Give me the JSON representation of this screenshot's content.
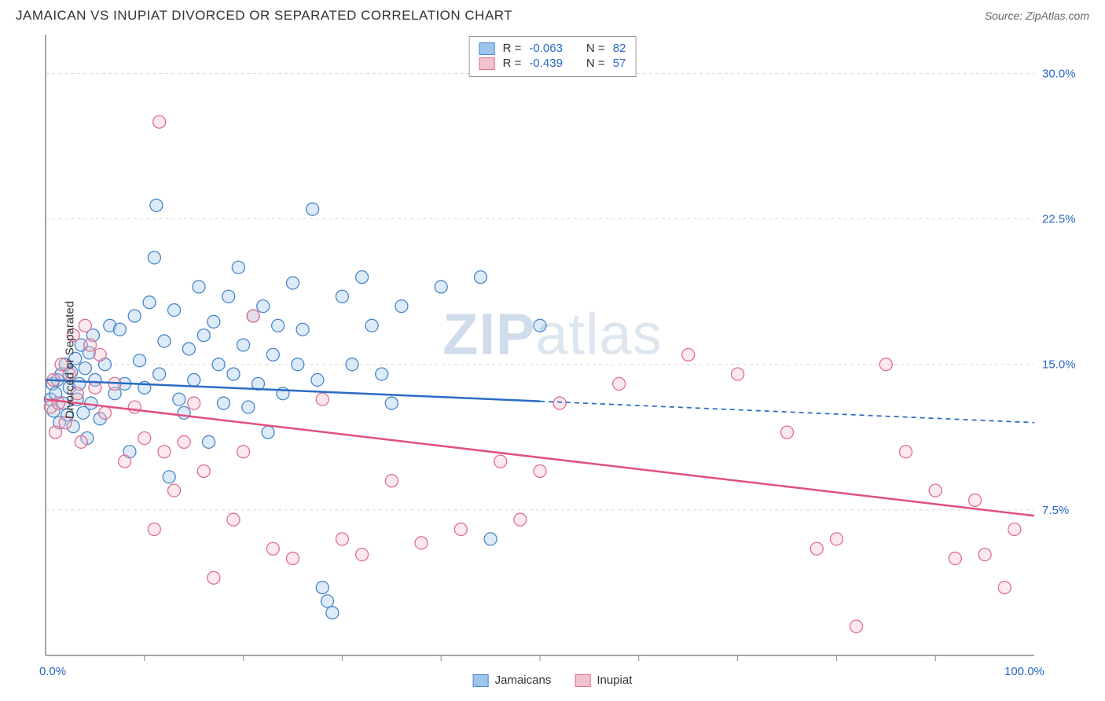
{
  "title": "JAMAICAN VS INUPIAT DIVORCED OR SEPARATED CORRELATION CHART",
  "source_label": "Source:",
  "source_name": "ZipAtlas.com",
  "watermark_bold": "ZIP",
  "watermark_rest": "atlas",
  "y_axis_label": "Divorced or Separated",
  "chart": {
    "type": "scatter",
    "background_color": "#ffffff",
    "plot_border_color": "#888888",
    "grid_color": "#d8d8d8",
    "xlim": [
      0,
      100
    ],
    "ylim": [
      0,
      32
    ],
    "xtick_major": [
      0,
      50,
      100
    ],
    "xtick_labels": [
      "0.0%",
      "",
      "100.0%"
    ],
    "xtick_minor_step": 10,
    "ytick_positions": [
      7.5,
      15.0,
      22.5,
      30.0
    ],
    "ytick_labels": [
      "7.5%",
      "15.0%",
      "22.5%",
      "30.0%"
    ],
    "axis_label_color": "#2968c8",
    "axis_label_fontsize": 15,
    "marker_radius": 8,
    "marker_fill_opacity": 0.35,
    "marker_stroke_width": 1.3,
    "series": [
      {
        "name": "Jamaicans",
        "color_fill": "#9ec5ec",
        "color_stroke": "#4a85c9",
        "R": "-0.063",
        "N": "82",
        "trend": {
          "color": "#2b6cc4",
          "width": 2.5,
          "solid_xmax": 50,
          "dash": "6,5",
          "y_start": 14.2,
          "y_end": 12.0
        },
        "points": [
          [
            0.5,
            13.2
          ],
          [
            0.7,
            14.0
          ],
          [
            0.8,
            12.6
          ],
          [
            1.0,
            13.5
          ],
          [
            1.2,
            14.2
          ],
          [
            1.4,
            12.0
          ],
          [
            1.6,
            14.5
          ],
          [
            1.8,
            13.0
          ],
          [
            2.0,
            15.0
          ],
          [
            2.2,
            12.4
          ],
          [
            2.4,
            13.8
          ],
          [
            2.6,
            14.6
          ],
          [
            2.8,
            11.8
          ],
          [
            3.0,
            15.3
          ],
          [
            3.2,
            13.2
          ],
          [
            3.4,
            14.0
          ],
          [
            3.6,
            16.0
          ],
          [
            3.8,
            12.5
          ],
          [
            4.0,
            14.8
          ],
          [
            4.2,
            11.2
          ],
          [
            4.4,
            15.6
          ],
          [
            4.6,
            13.0
          ],
          [
            4.8,
            16.5
          ],
          [
            5.0,
            14.2
          ],
          [
            5.5,
            12.2
          ],
          [
            6.0,
            15.0
          ],
          [
            6.5,
            17.0
          ],
          [
            7.0,
            13.5
          ],
          [
            7.5,
            16.8
          ],
          [
            8.0,
            14.0
          ],
          [
            8.5,
            10.5
          ],
          [
            9.0,
            17.5
          ],
          [
            9.5,
            15.2
          ],
          [
            10.0,
            13.8
          ],
          [
            10.5,
            18.2
          ],
          [
            11.0,
            20.5
          ],
          [
            11.2,
            23.2
          ],
          [
            11.5,
            14.5
          ],
          [
            12.0,
            16.2
          ],
          [
            12.5,
            9.2
          ],
          [
            13.0,
            17.8
          ],
          [
            13.5,
            13.2
          ],
          [
            14.0,
            12.5
          ],
          [
            14.5,
            15.8
          ],
          [
            15.0,
            14.2
          ],
          [
            15.5,
            19.0
          ],
          [
            16.0,
            16.5
          ],
          [
            16.5,
            11.0
          ],
          [
            17.0,
            17.2
          ],
          [
            17.5,
            15.0
          ],
          [
            18.0,
            13.0
          ],
          [
            18.5,
            18.5
          ],
          [
            19.0,
            14.5
          ],
          [
            19.5,
            20.0
          ],
          [
            20.0,
            16.0
          ],
          [
            20.5,
            12.8
          ],
          [
            21.0,
            17.5
          ],
          [
            21.5,
            14.0
          ],
          [
            22.0,
            18.0
          ],
          [
            22.5,
            11.5
          ],
          [
            23.0,
            15.5
          ],
          [
            23.5,
            17.0
          ],
          [
            24.0,
            13.5
          ],
          [
            25.0,
            19.2
          ],
          [
            25.5,
            15.0
          ],
          [
            26.0,
            16.8
          ],
          [
            27.0,
            23.0
          ],
          [
            27.5,
            14.2
          ],
          [
            28.0,
            3.5
          ],
          [
            28.5,
            2.8
          ],
          [
            29.0,
            2.2
          ],
          [
            30.0,
            18.5
          ],
          [
            31.0,
            15.0
          ],
          [
            32.0,
            19.5
          ],
          [
            33.0,
            17.0
          ],
          [
            34.0,
            14.5
          ],
          [
            35.0,
            13.0
          ],
          [
            36.0,
            18.0
          ],
          [
            40.0,
            19.0
          ],
          [
            45.0,
            6.0
          ],
          [
            44.0,
            19.5
          ],
          [
            50.0,
            17.0
          ]
        ]
      },
      {
        "name": "Inupiat",
        "color_fill": "#f4c1ce",
        "color_stroke": "#e06e8e",
        "R": "-0.439",
        "N": "57",
        "trend": {
          "color": "#e05080",
          "width": 2.5,
          "solid_xmax": 100,
          "dash": "",
          "y_start": 13.2,
          "y_end": 7.2
        },
        "points": [
          [
            0.5,
            12.8
          ],
          [
            0.8,
            14.2
          ],
          [
            1.0,
            11.5
          ],
          [
            1.3,
            13.0
          ],
          [
            1.6,
            15.0
          ],
          [
            2.0,
            12.0
          ],
          [
            2.4,
            14.5
          ],
          [
            2.8,
            16.5
          ],
          [
            3.2,
            13.5
          ],
          [
            3.6,
            11.0
          ],
          [
            4.0,
            17.0
          ],
          [
            4.5,
            16.0
          ],
          [
            5.0,
            13.8
          ],
          [
            5.5,
            15.5
          ],
          [
            6.0,
            12.5
          ],
          [
            7.0,
            14.0
          ],
          [
            8.0,
            10.0
          ],
          [
            9.0,
            12.8
          ],
          [
            10.0,
            11.2
          ],
          [
            11.0,
            6.5
          ],
          [
            11.5,
            27.5
          ],
          [
            12.0,
            10.5
          ],
          [
            13.0,
            8.5
          ],
          [
            14.0,
            11.0
          ],
          [
            15.0,
            13.0
          ],
          [
            16.0,
            9.5
          ],
          [
            17.0,
            4.0
          ],
          [
            19.0,
            7.0
          ],
          [
            20.0,
            10.5
          ],
          [
            21.0,
            17.5
          ],
          [
            23.0,
            5.5
          ],
          [
            25.0,
            5.0
          ],
          [
            28.0,
            13.2
          ],
          [
            30.0,
            6.0
          ],
          [
            32.0,
            5.2
          ],
          [
            35.0,
            9.0
          ],
          [
            38.0,
            5.8
          ],
          [
            42.0,
            6.5
          ],
          [
            46.0,
            10.0
          ],
          [
            50.0,
            9.5
          ],
          [
            48.0,
            7.0
          ],
          [
            52.0,
            13.0
          ],
          [
            58.0,
            14.0
          ],
          [
            65.0,
            15.5
          ],
          [
            70.0,
            14.5
          ],
          [
            75.0,
            11.5
          ],
          [
            78.0,
            5.5
          ],
          [
            80.0,
            6.0
          ],
          [
            82.0,
            1.5
          ],
          [
            85.0,
            15.0
          ],
          [
            87.0,
            10.5
          ],
          [
            90.0,
            8.5
          ],
          [
            92.0,
            5.0
          ],
          [
            94.0,
            8.0
          ],
          [
            95.0,
            5.2
          ],
          [
            97.0,
            3.5
          ],
          [
            98.0,
            6.5
          ]
        ]
      }
    ]
  },
  "legend_top_labels": {
    "R": "R =",
    "N": "N ="
  },
  "legend_bottom": [
    "Jamaicans",
    "Inupiat"
  ]
}
